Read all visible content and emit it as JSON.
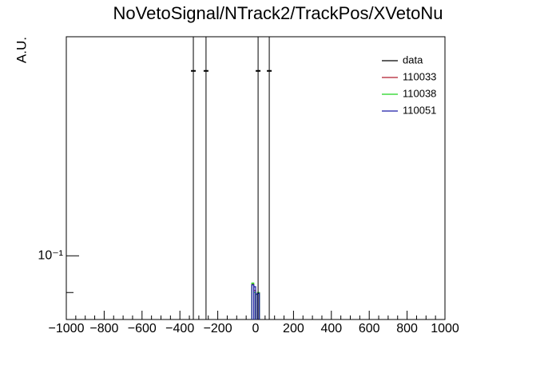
{
  "chart_data": {
    "type": "histogram",
    "title": "NoVetoSignal/NTrack2/TrackPos/XVetoNu",
    "ylabel": "A.U.",
    "log_y": true,
    "legend": "upper right",
    "xlim": [
      -1000,
      1000
    ],
    "ylim": [
      0.0833,
      0.1875
    ],
    "xticks": [
      {
        "value": -1000,
        "label": "−1000"
      },
      {
        "value": -800,
        "label": "−800"
      },
      {
        "value": -600,
        "label": "−600"
      },
      {
        "value": -400,
        "label": "−400"
      },
      {
        "value": -200,
        "label": "−200"
      },
      0,
      200,
      400,
      600,
      800,
      1000
    ],
    "yticks": [
      {
        "value": 0.1,
        "label": "10⁻¹"
      }
    ],
    "yminor": [
      0.09
    ],
    "points": {
      "name": "data",
      "color": "#000000",
      "x": [
        -329,
        -262,
        13,
        72
      ],
      "values": [
        0.17,
        0.17,
        0.17,
        0.17
      ]
    },
    "bins": [
      -20,
      -10,
      0,
      10,
      20
    ],
    "series": [
      {
        "name": "110033",
        "color": "#b01c2e",
        "values": [
          0.0922,
          0.0905,
          0.0896,
          0.0899
        ]
      },
      {
        "name": "110038",
        "color": "#1ed41e",
        "values": [
          0.0925,
          0.09,
          0.0895,
          0.09
        ]
      },
      {
        "name": "110051",
        "color": "#1a1aa8",
        "values": [
          0.092,
          0.0915,
          0.0896,
          0.0898
        ]
      }
    ]
  }
}
